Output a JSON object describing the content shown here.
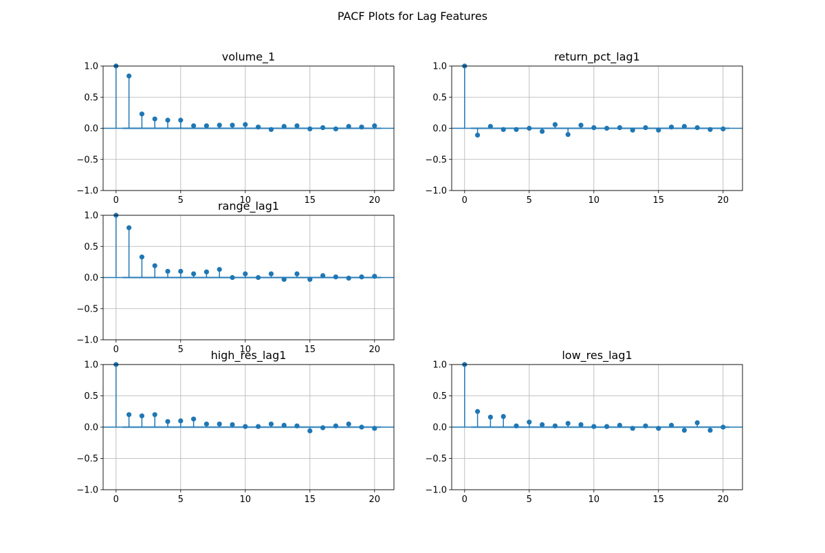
{
  "figure": {
    "title": "PACF Plots for Lag Features",
    "stem_color": "#1f77b4",
    "band_color": "#1f77b4"
  },
  "chart_data": [
    {
      "type": "stem",
      "title": "volume_1",
      "xlim": [
        -1,
        21.5
      ],
      "ylim": [
        -1.0,
        1.0
      ],
      "xticks": [
        0,
        5,
        10,
        15,
        20
      ],
      "yticks": [
        -1.0,
        -0.5,
        0.0,
        0.5,
        1.0
      ],
      "ytick_labels": [
        "−1.0",
        "−0.5",
        "0.0",
        "0.5",
        "1.0"
      ],
      "grid": true,
      "confidence_band": 0.02,
      "lags": [
        0,
        1,
        2,
        3,
        4,
        5,
        6,
        7,
        8,
        9,
        10,
        11,
        12,
        13,
        14,
        15,
        16,
        17,
        18,
        19,
        20
      ],
      "values": [
        1.0,
        0.84,
        0.23,
        0.15,
        0.13,
        0.13,
        0.04,
        0.04,
        0.05,
        0.05,
        0.06,
        0.02,
        -0.02,
        0.03,
        0.04,
        -0.01,
        0.01,
        -0.01,
        0.03,
        0.02,
        0.04
      ]
    },
    {
      "type": "stem",
      "title": "return_pct_lag1",
      "xlim": [
        -1,
        21.5
      ],
      "ylim": [
        -1.0,
        1.0
      ],
      "xticks": [
        0,
        5,
        10,
        15,
        20
      ],
      "yticks": [
        -1.0,
        -0.5,
        0.0,
        0.5,
        1.0
      ],
      "ytick_labels": [
        "−1.0",
        "−0.5",
        "0.0",
        "0.5",
        "1.0"
      ],
      "grid": true,
      "confidence_band": 0.02,
      "lags": [
        0,
        1,
        2,
        3,
        4,
        5,
        6,
        7,
        8,
        9,
        10,
        11,
        12,
        13,
        14,
        15,
        16,
        17,
        18,
        19,
        20
      ],
      "values": [
        1.0,
        -0.11,
        0.03,
        -0.02,
        -0.02,
        0.0,
        -0.05,
        0.06,
        -0.1,
        0.05,
        0.01,
        0.0,
        0.01,
        -0.03,
        0.01,
        -0.03,
        0.02,
        0.03,
        0.01,
        -0.02,
        -0.01
      ]
    },
    {
      "type": "stem",
      "title": "range_lag1",
      "xlim": [
        -1,
        21.5
      ],
      "ylim": [
        -1.0,
        1.0
      ],
      "xticks": [
        0,
        5,
        10,
        15,
        20
      ],
      "yticks": [
        -1.0,
        -0.5,
        0.0,
        0.5,
        1.0
      ],
      "ytick_labels": [
        "−1.0",
        "−0.5",
        "0.0",
        "0.5",
        "1.0"
      ],
      "grid": true,
      "confidence_band": 0.02,
      "lags": [
        0,
        1,
        2,
        3,
        4,
        5,
        6,
        7,
        8,
        9,
        10,
        11,
        12,
        13,
        14,
        15,
        16,
        17,
        18,
        19,
        20
      ],
      "values": [
        1.0,
        0.8,
        0.33,
        0.19,
        0.1,
        0.1,
        0.06,
        0.09,
        0.13,
        0.0,
        0.06,
        0.0,
        0.06,
        -0.03,
        0.06,
        -0.03,
        0.03,
        0.01,
        -0.01,
        0.01,
        0.02
      ]
    },
    {
      "type": "stem",
      "title": "high_res_lag1",
      "xlim": [
        -1,
        21.5
      ],
      "ylim": [
        -1.0,
        1.0
      ],
      "xticks": [
        0,
        5,
        10,
        15,
        20
      ],
      "yticks": [
        -1.0,
        -0.5,
        0.0,
        0.5,
        1.0
      ],
      "ytick_labels": [
        "−1.0",
        "−0.5",
        "0.0",
        "0.5",
        "1.0"
      ],
      "grid": true,
      "confidence_band": 0.02,
      "lags": [
        0,
        1,
        2,
        3,
        4,
        5,
        6,
        7,
        8,
        9,
        10,
        11,
        12,
        13,
        14,
        15,
        16,
        17,
        18,
        19,
        20
      ],
      "values": [
        1.0,
        0.2,
        0.18,
        0.2,
        0.09,
        0.1,
        0.13,
        0.05,
        0.05,
        0.04,
        0.01,
        0.01,
        0.05,
        0.03,
        0.02,
        -0.06,
        -0.01,
        0.02,
        0.05,
        0.0,
        -0.02
      ]
    },
    {
      "type": "stem",
      "title": "low_res_lag1",
      "xlim": [
        -1,
        21.5
      ],
      "ylim": [
        -1.0,
        1.0
      ],
      "xticks": [
        0,
        5,
        10,
        15,
        20
      ],
      "yticks": [
        -1.0,
        -0.5,
        0.0,
        0.5,
        1.0
      ],
      "ytick_labels": [
        "−1.0",
        "−0.5",
        "0.0",
        "0.5",
        "1.0"
      ],
      "grid": true,
      "confidence_band": 0.02,
      "lags": [
        0,
        1,
        2,
        3,
        4,
        5,
        6,
        7,
        8,
        9,
        10,
        11,
        12,
        13,
        14,
        15,
        16,
        17,
        18,
        19,
        20
      ],
      "values": [
        1.0,
        0.25,
        0.16,
        0.17,
        0.02,
        0.08,
        0.04,
        0.02,
        0.06,
        0.04,
        0.01,
        0.01,
        0.03,
        -0.02,
        0.02,
        -0.02,
        0.03,
        -0.05,
        0.07,
        -0.05,
        0.0
      ]
    }
  ]
}
